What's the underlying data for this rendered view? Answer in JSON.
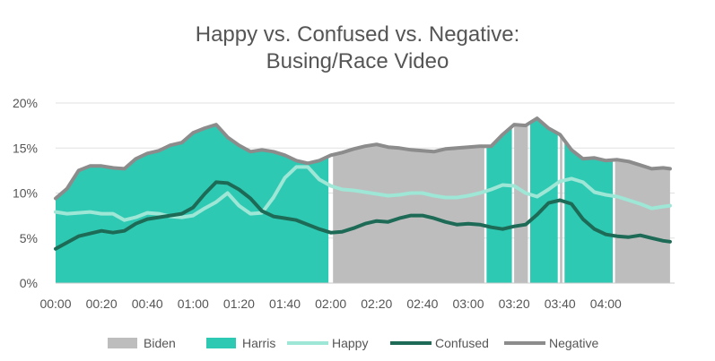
{
  "chart_data": {
    "type": "area",
    "title": [
      "Happy vs. Confused vs. Negative:",
      "Busing/Race Video"
    ],
    "xlabel": "",
    "ylabel": "",
    "x_ticks": [
      "00:00",
      "00:20",
      "00:40",
      "01:00",
      "01:20",
      "01:40",
      "02:00",
      "02:20",
      "02:40",
      "03:00",
      "03:20",
      "03:40",
      "04:00"
    ],
    "y_ticks": [
      "0%",
      "5%",
      "10%",
      "15%",
      "20%"
    ],
    "ylim": [
      0,
      20
    ],
    "xlim_seconds": [
      0,
      270
    ],
    "grid": "horizontal",
    "legend_position": "bottom",
    "speaker_segments": [
      {
        "speaker": "Harris",
        "start": "00:00",
        "end": "01:59"
      },
      {
        "speaker": "Biden",
        "start": "02:01",
        "end": "03:07"
      },
      {
        "speaker": "Harris",
        "start": "03:08",
        "end": "03:19"
      },
      {
        "speaker": "Biden",
        "start": "03:20",
        "end": "03:26"
      },
      {
        "speaker": "Harris",
        "start": "03:27",
        "end": "03:39"
      },
      {
        "speaker": "Biden",
        "start": "03:40",
        "end": "03:41"
      },
      {
        "speaker": "Harris",
        "start": "03:42",
        "end": "04:03"
      },
      {
        "speaker": "Biden",
        "start": "04:04",
        "end": "04:28"
      }
    ],
    "x": [
      "00:00",
      "00:05",
      "00:10",
      "00:15",
      "00:20",
      "00:25",
      "00:30",
      "00:35",
      "00:40",
      "00:45",
      "00:50",
      "00:55",
      "01:00",
      "01:05",
      "01:10",
      "01:15",
      "01:20",
      "01:25",
      "01:30",
      "01:35",
      "01:40",
      "01:45",
      "01:50",
      "01:55",
      "02:00",
      "02:05",
      "02:10",
      "02:15",
      "02:20",
      "02:25",
      "02:30",
      "02:35",
      "02:40",
      "02:45",
      "02:50",
      "02:55",
      "03:00",
      "03:05",
      "03:10",
      "03:15",
      "03:20",
      "03:25",
      "03:30",
      "03:35",
      "03:40",
      "03:45",
      "03:50",
      "03:55",
      "04:00",
      "04:05",
      "04:10",
      "04:15",
      "04:20",
      "04:25",
      "04:28"
    ],
    "series": [
      {
        "name": "Negative",
        "color": "#8c8c8c",
        "values": [
          9.4,
          10.5,
          12.5,
          13.0,
          13.0,
          12.8,
          12.7,
          13.8,
          14.4,
          14.7,
          15.3,
          15.6,
          16.7,
          17.2,
          17.6,
          16.2,
          15.3,
          14.6,
          14.8,
          14.6,
          14.2,
          13.6,
          13.3,
          13.6,
          14.2,
          14.5,
          14.9,
          15.2,
          15.4,
          15.1,
          15.0,
          14.8,
          14.7,
          14.6,
          14.9,
          15.0,
          15.1,
          15.2,
          15.2,
          16.5,
          17.6,
          17.5,
          18.3,
          17.2,
          16.5,
          14.8,
          13.8,
          13.9,
          13.6,
          13.7,
          13.5,
          13.1,
          12.7,
          12.8,
          12.7
        ]
      },
      {
        "name": "Happy",
        "color": "#9ee6d6",
        "values": [
          7.9,
          7.7,
          7.8,
          7.9,
          7.7,
          7.7,
          7.0,
          7.3,
          7.8,
          7.7,
          7.4,
          7.3,
          7.5,
          8.3,
          9.0,
          10.0,
          8.6,
          7.7,
          7.8,
          9.5,
          11.7,
          12.9,
          12.9,
          11.5,
          10.8,
          10.4,
          10.3,
          10.1,
          9.9,
          9.7,
          9.8,
          10.0,
          10.0,
          9.7,
          9.5,
          9.5,
          9.7,
          10.0,
          10.4,
          10.9,
          10.8,
          10.0,
          9.6,
          10.4,
          11.3,
          11.6,
          11.2,
          10.1,
          9.8,
          9.6,
          9.2,
          8.8,
          8.3,
          8.5,
          8.6
        ]
      },
      {
        "name": "Confused",
        "color": "#1d6b56",
        "values": [
          3.8,
          4.5,
          5.2,
          5.5,
          5.8,
          5.6,
          5.8,
          6.6,
          7.1,
          7.3,
          7.5,
          7.7,
          8.4,
          9.9,
          11.2,
          11.1,
          10.4,
          9.4,
          8.0,
          7.4,
          7.2,
          7.0,
          6.5,
          6.0,
          5.6,
          5.7,
          6.1,
          6.6,
          6.9,
          6.8,
          7.2,
          7.5,
          7.5,
          7.2,
          6.8,
          6.5,
          6.6,
          6.5,
          6.2,
          6.0,
          6.3,
          6.5,
          7.6,
          8.9,
          9.2,
          8.8,
          7.1,
          6.0,
          5.4,
          5.2,
          5.1,
          5.3,
          5.0,
          4.7,
          4.6
        ]
      }
    ],
    "legend": [
      {
        "label": "Biden",
        "kind": "box",
        "color": "#bdbdbd"
      },
      {
        "label": "Harris",
        "kind": "box",
        "color": "#2ec9b3"
      },
      {
        "label": "Happy",
        "kind": "line",
        "color": "#9ee6d6"
      },
      {
        "label": "Confused",
        "kind": "line",
        "color": "#1d6b56"
      },
      {
        "label": "Negative",
        "kind": "line",
        "color": "#8c8c8c"
      }
    ],
    "colors": {
      "Biden": "#bdbdbd",
      "Harris": "#2ec9b3",
      "gridline": "#e0e0e0",
      "axis": "#c8c8c8"
    }
  }
}
